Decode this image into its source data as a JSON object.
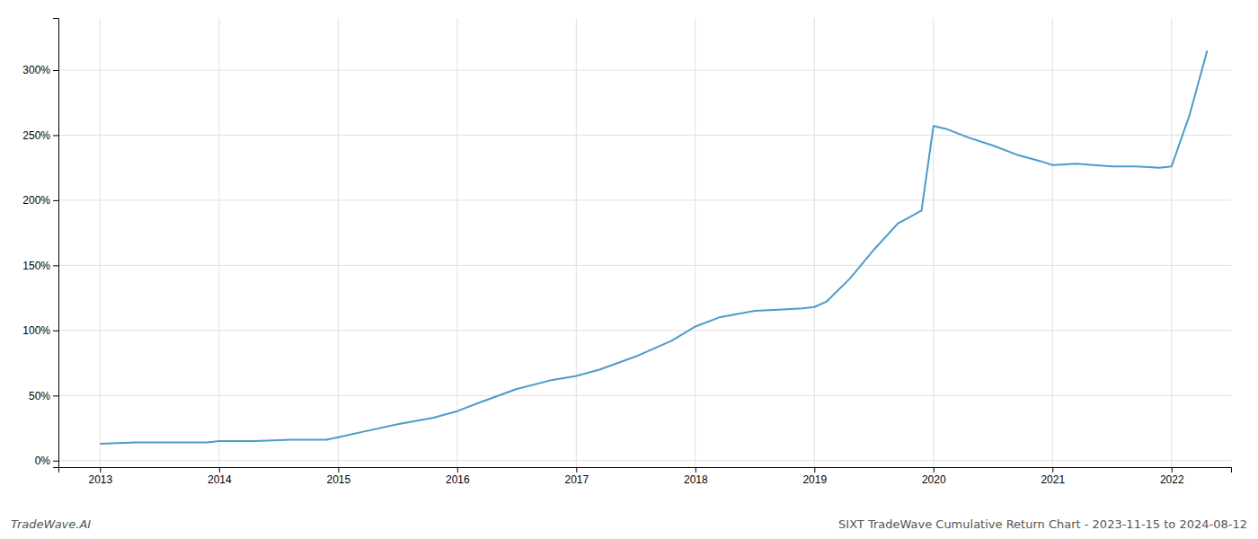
{
  "chart_data": {
    "type": "line",
    "title": "SIXT TradeWave Cumulative Return Chart - 2023-11-15 to 2024-08-12",
    "annotations": [
      {
        "text": "TradeWave.AI"
      }
    ],
    "x": [
      2013.0,
      2013.3,
      2013.6,
      2013.9,
      2014.0,
      2014.3,
      2014.6,
      2014.9,
      2015.0,
      2015.2,
      2015.5,
      2015.8,
      2016.0,
      2016.2,
      2016.5,
      2016.8,
      2017.0,
      2017.2,
      2017.5,
      2017.8,
      2018.0,
      2018.2,
      2018.5,
      2018.7,
      2018.9,
      2019.0,
      2019.1,
      2019.3,
      2019.5,
      2019.7,
      2019.9,
      2020.0,
      2020.1,
      2020.3,
      2020.5,
      2020.7,
      2020.9,
      2021.0,
      2021.2,
      2021.5,
      2021.7,
      2021.9,
      2022.0,
      2022.15,
      2022.3
    ],
    "values": [
      13,
      14,
      14,
      14,
      15,
      15,
      16,
      16,
      18,
      22,
      28,
      33,
      38,
      45,
      55,
      62,
      65,
      70,
      80,
      92,
      103,
      110,
      115,
      116,
      117,
      118,
      122,
      140,
      162,
      182,
      192,
      257,
      255,
      248,
      242,
      235,
      230,
      227,
      228,
      226,
      226,
      225,
      226,
      265,
      315
    ],
    "color": "#4a9cc8",
    "xlim": [
      2012.65,
      2022.5
    ],
    "xticks": [
      2013,
      2014,
      2015,
      2016,
      2017,
      2018,
      2019,
      2020,
      2021,
      2022
    ],
    "ylim": [
      -5,
      340
    ],
    "yticks": [
      {
        "value": 0,
        "label": "0%"
      },
      {
        "value": 50,
        "label": "50%"
      },
      {
        "value": 100,
        "label": "100%"
      },
      {
        "value": 150,
        "label": "150%"
      },
      {
        "value": 200,
        "label": "200%"
      },
      {
        "value": 250,
        "label": "250%"
      },
      {
        "value": 300,
        "label": "300%"
      }
    ],
    "grid": true
  }
}
